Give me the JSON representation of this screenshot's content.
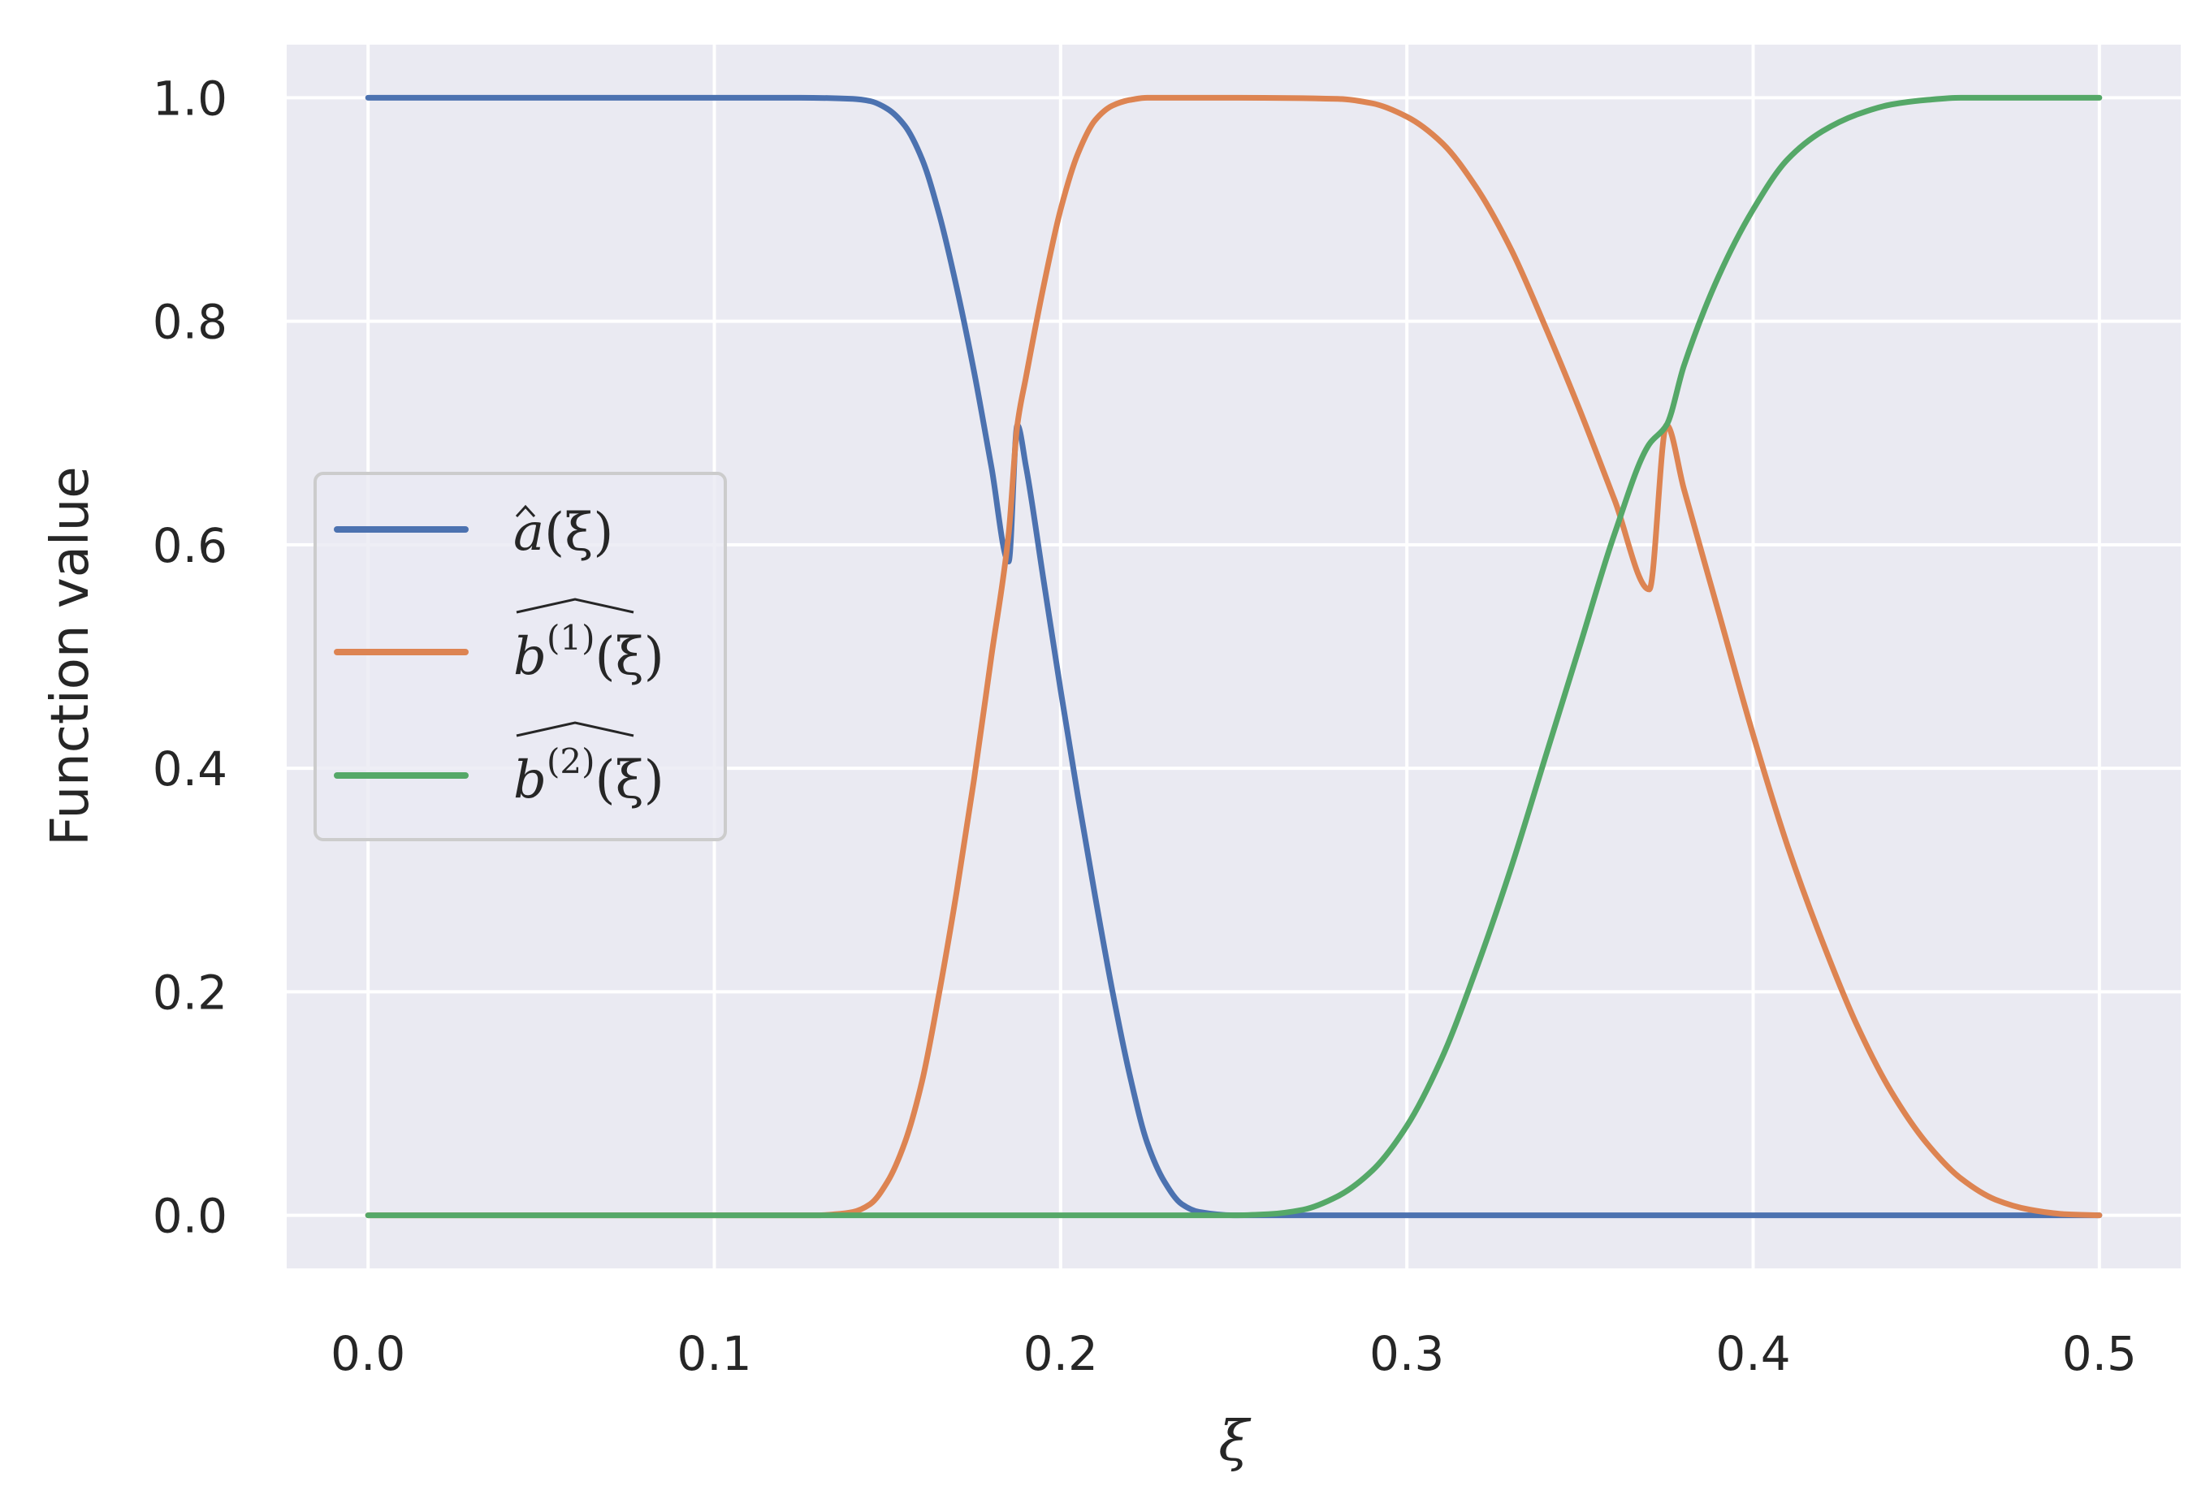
{
  "chart_data": {
    "type": "line",
    "title": "",
    "xlabel": "ξ",
    "ylabel": "Function value",
    "xlim": [
      -0.0235,
      0.5235
    ],
    "ylim": [
      -0.0475,
      1.0475
    ],
    "xticks": [
      0.0,
      0.1,
      0.2,
      0.3,
      0.4,
      0.5
    ],
    "xtick_labels": [
      "0.0",
      "0.1",
      "0.2",
      "0.3",
      "0.4",
      "0.5"
    ],
    "yticks": [
      0.0,
      0.2,
      0.4,
      0.6,
      0.8,
      1.0
    ],
    "ytick_labels": [
      "0.0",
      "0.2",
      "0.4",
      "0.6",
      "0.8",
      "1.0"
    ],
    "grid": true,
    "legend_position": "center-left",
    "background": "#eaeaf2",
    "series": [
      {
        "name": "â(ξ)",
        "color": "#4c72b0",
        "x": [
          0.0,
          0.125,
          0.14,
          0.145,
          0.15,
          0.155,
          0.16,
          0.165,
          0.17,
          0.175,
          0.18,
          0.185,
          0.1875,
          0.19,
          0.195,
          0.2,
          0.205,
          0.21,
          0.215,
          0.22,
          0.225,
          0.23,
          0.235,
          0.24,
          0.25,
          0.5
        ],
        "y": [
          1.0,
          1.0,
          0.999,
          0.997,
          0.99,
          0.975,
          0.945,
          0.895,
          0.83,
          0.755,
          0.67,
          0.585,
          0.7071,
          0.67,
          0.57,
          0.47,
          0.375,
          0.285,
          0.2,
          0.125,
          0.065,
          0.03,
          0.01,
          0.003,
          0.0,
          0.0
        ]
      },
      {
        "name": "b̂(1)(ξ)",
        "color": "#dd8452",
        "x": [
          0.0,
          0.125,
          0.13,
          0.135,
          0.14,
          0.145,
          0.15,
          0.155,
          0.16,
          0.165,
          0.17,
          0.175,
          0.18,
          0.185,
          0.1875,
          0.19,
          0.195,
          0.2,
          0.205,
          0.21,
          0.215,
          0.22,
          0.225,
          0.23,
          0.24,
          0.25,
          0.28,
          0.29,
          0.3,
          0.31,
          0.32,
          0.33,
          0.34,
          0.35,
          0.36,
          0.37,
          0.375,
          0.38,
          0.39,
          0.4,
          0.41,
          0.42,
          0.43,
          0.44,
          0.45,
          0.46,
          0.47,
          0.48,
          0.49,
          0.5
        ],
        "y": [
          0.0,
          0.0,
          0.0,
          0.001,
          0.003,
          0.01,
          0.03,
          0.065,
          0.12,
          0.2,
          0.29,
          0.39,
          0.5,
          0.61,
          0.7071,
          0.75,
          0.83,
          0.9,
          0.95,
          0.98,
          0.993,
          0.998,
          1.0,
          1.0,
          1.0,
          1.0,
          0.999,
          0.995,
          0.983,
          0.96,
          0.92,
          0.865,
          0.795,
          0.72,
          0.64,
          0.56,
          0.7071,
          0.65,
          0.54,
          0.43,
          0.33,
          0.245,
          0.17,
          0.11,
          0.065,
          0.033,
          0.014,
          0.005,
          0.001,
          0.0
        ]
      },
      {
        "name": "b̂(2)(ξ)",
        "color": "#55a868",
        "x": [
          0.0,
          0.25,
          0.26,
          0.27,
          0.28,
          0.29,
          0.3,
          0.31,
          0.32,
          0.33,
          0.34,
          0.35,
          0.36,
          0.37,
          0.375,
          0.38,
          0.39,
          0.4,
          0.41,
          0.42,
          0.43,
          0.44,
          0.45,
          0.46,
          0.47,
          0.48,
          0.49,
          0.5
        ],
        "y": [
          0.0,
          0.0,
          0.001,
          0.005,
          0.017,
          0.04,
          0.08,
          0.14,
          0.22,
          0.31,
          0.41,
          0.51,
          0.61,
          0.69,
          0.7071,
          0.76,
          0.84,
          0.9,
          0.945,
          0.97,
          0.985,
          0.994,
          0.998,
          1.0,
          1.0,
          1.0,
          1.0,
          1.0
        ]
      }
    ]
  },
  "legend": {
    "entries": [
      {
        "base": "a",
        "sup": "",
        "suffix": "(ξ)",
        "color": "#4c72b0"
      },
      {
        "base": "b",
        "sup": "(1)",
        "suffix": "(ξ)",
        "color": "#dd8452"
      },
      {
        "base": "b",
        "sup": "(2)",
        "suffix": "(ξ)",
        "color": "#55a868"
      }
    ]
  }
}
